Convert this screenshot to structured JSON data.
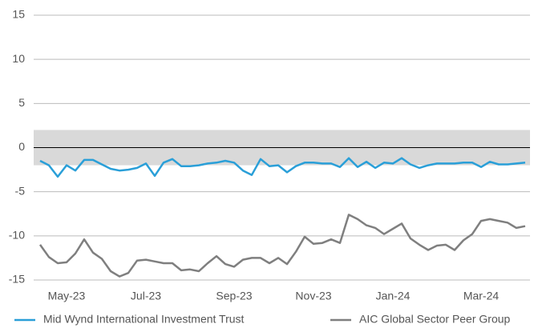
{
  "chart_data": {
    "type": "line",
    "categories": [
      null,
      null,
      null,
      "May-23",
      null,
      null,
      null,
      null,
      null,
      null,
      null,
      null,
      "Jul-23",
      null,
      null,
      null,
      null,
      null,
      null,
      null,
      null,
      null,
      "Sep-23",
      null,
      null,
      null,
      null,
      null,
      null,
      null,
      null,
      "Nov-23",
      null,
      null,
      null,
      null,
      null,
      null,
      null,
      null,
      "Jan-24",
      null,
      null,
      null,
      null,
      null,
      null,
      null,
      null,
      null,
      "Mar-24",
      null,
      null,
      null,
      null,
      null
    ],
    "series": [
      {
        "name": "Mid Wynd International Investment Trust",
        "color": "#2a9fd8",
        "values": [
          -1.5,
          -2,
          -3.3,
          -2,
          -2.6,
          -1.4,
          -1.4,
          -1.9,
          -2.4,
          -2.6,
          -2.5,
          -2.3,
          -1.8,
          -3.2,
          -1.7,
          -1.3,
          -2.1,
          -2.1,
          -2,
          -1.8,
          -1.7,
          -1.5,
          -1.7,
          -2.6,
          -3.1,
          -1.3,
          -2.1,
          -2,
          -2.8,
          -2.1,
          -1.7,
          -1.7,
          -1.8,
          -1.8,
          -2.2,
          -1.2,
          -2.2,
          -1.6,
          -2.3,
          -1.7,
          -1.8,
          -1.2,
          -1.9,
          -2.3,
          -2,
          -1.8,
          -1.8,
          -1.8,
          -1.7,
          -1.7,
          -2.2,
          -1.6,
          -1.9,
          -1.9,
          -1.8,
          -1.7
        ]
      },
      {
        "name": "AIC Global Sector Peer Group",
        "color": "#7f7f7f",
        "values": [
          -11,
          -12.4,
          -13.1,
          -13,
          -12,
          -10.4,
          -11.9,
          -12.6,
          -14,
          -14.6,
          -14.2,
          -12.8,
          -12.7,
          -12.9,
          -13.1,
          -13.1,
          -13.9,
          -13.8,
          -14,
          -13.1,
          -12.3,
          -13.2,
          -13.5,
          -12.7,
          -12.5,
          -12.5,
          -13.1,
          -12.5,
          -13.2,
          -11.8,
          -10.1,
          -10.9,
          -10.8,
          -10.4,
          -10.8,
          -7.6,
          -8.1,
          -8.8,
          -9.1,
          -9.8,
          -9.2,
          -8.6,
          -10.3,
          -11,
          -11.6,
          -11.1,
          -11,
          -11.6,
          -10.5,
          -9.8,
          -8.3,
          -8.1,
          -8.3,
          -8.5,
          -9.1,
          -8.9
        ]
      }
    ],
    "band": [
      -2,
      2
    ],
    "band_color": "#d9d9d9",
    "ylim": [
      -15,
      15
    ],
    "yticks": [
      -15,
      -10,
      -5,
      0,
      5,
      10,
      15
    ],
    "grid": true
  }
}
